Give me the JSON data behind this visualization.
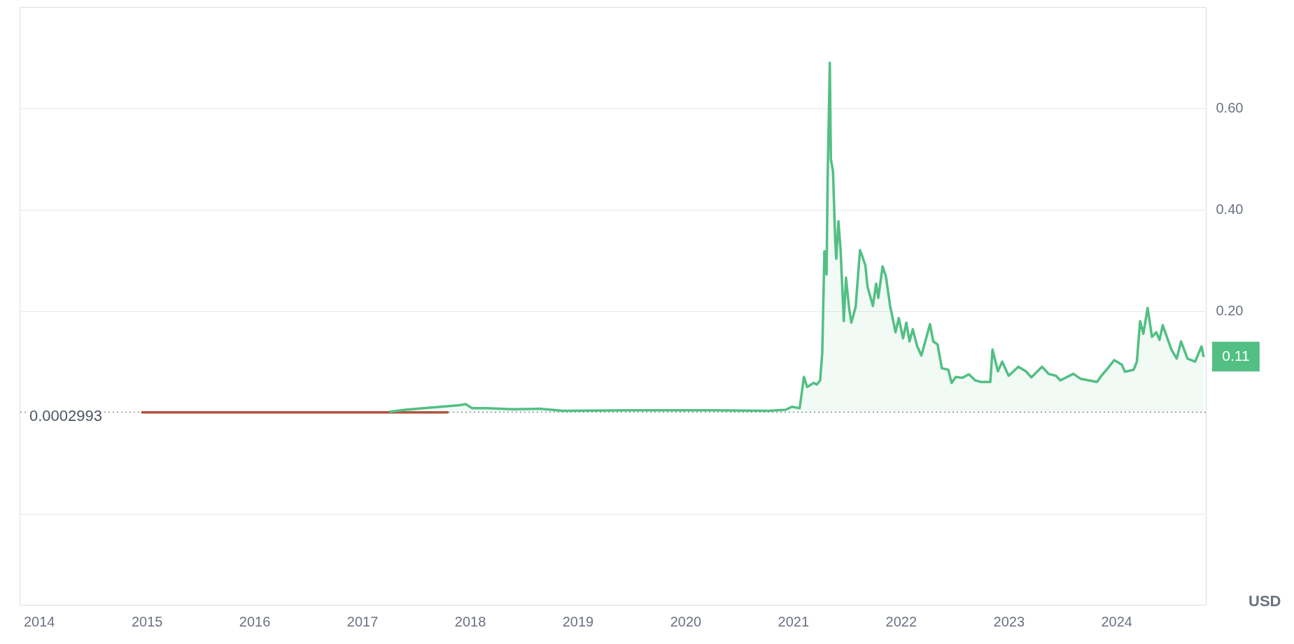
{
  "chart_data": {
    "type": "area",
    "xlim": [
      2013.82,
      2024.83
    ],
    "ylim": [
      -0.38,
      0.8
    ],
    "xticks": [
      {
        "value": 2014,
        "label": "2014"
      },
      {
        "value": 2015,
        "label": "2015"
      },
      {
        "value": 2016,
        "label": "2016"
      },
      {
        "value": 2017,
        "label": "2017"
      },
      {
        "value": 2018,
        "label": "2018"
      },
      {
        "value": 2019,
        "label": "2019"
      },
      {
        "value": 2020,
        "label": "2020"
      },
      {
        "value": 2021,
        "label": "2021"
      },
      {
        "value": 2022,
        "label": "2022"
      },
      {
        "value": 2023,
        "label": "2023"
      },
      {
        "value": 2024,
        "label": "2024"
      }
    ],
    "yticks": [
      {
        "value": -0.2,
        "label": null
      },
      {
        "value": 0.2,
        "label": "0.20"
      },
      {
        "value": 0.4,
        "label": "0.40"
      },
      {
        "value": 0.6,
        "label": "0.60"
      }
    ],
    "grid": "y",
    "marker": "none",
    "line_style": "solid",
    "series": [
      {
        "type": "line",
        "color": "#b5503f",
        "x": [
          2014.95,
          2017.8
        ],
        "values": [
          0,
          0
        ]
      },
      {
        "color": "#52bf83",
        "x": [
          2017.25,
          2017.4,
          2017.9,
          2017.96,
          2018.02,
          2018.15,
          2018.4,
          2018.65,
          2018.86,
          2019.5,
          2020.2,
          2020.77,
          2020.93,
          2020.99,
          2021.06,
          2021.1,
          2021.13,
          2021.19,
          2021.22,
          2021.25,
          2021.27,
          2021.29,
          2021.31,
          2021.32,
          2021.34,
          2021.35,
          2021.37,
          2021.39,
          2021.4,
          2021.42,
          2021.44,
          2021.47,
          2021.49,
          2021.52,
          2021.54,
          2021.58,
          2021.62,
          2021.64,
          2021.67,
          2021.69,
          2021.74,
          2021.77,
          2021.79,
          2021.83,
          2021.86,
          2021.9,
          2021.95,
          2021.98,
          2022.02,
          2022.05,
          2022.08,
          2022.11,
          2022.15,
          2022.19,
          2022.27,
          2022.3,
          2022.34,
          2022.38,
          2022.44,
          2022.47,
          2022.51,
          2022.57,
          2022.63,
          2022.69,
          2022.74,
          2022.83,
          2022.85,
          2022.9,
          2022.94,
          2023.0,
          2023.09,
          2023.16,
          2023.21,
          2023.31,
          2023.37,
          2023.44,
          2023.48,
          2023.6,
          2023.67,
          2023.82,
          2023.86,
          2023.92,
          2023.98,
          2024.05,
          2024.08,
          2024.16,
          2024.19,
          2024.22,
          2024.25,
          2024.29,
          2024.33,
          2024.37,
          2024.4,
          2024.43,
          2024.51,
          2024.56,
          2024.6,
          2024.66,
          2024.73,
          2024.79,
          2024.81
        ],
        "values": [
          0.001,
          0.005,
          0.014,
          0.016,
          0.008,
          0.008,
          0.006,
          0.007,
          0.003,
          0.004,
          0.004,
          0.003,
          0.005,
          0.011,
          0.008,
          0.07,
          0.05,
          0.058,
          0.055,
          0.063,
          0.118,
          0.318,
          0.272,
          0.463,
          0.69,
          0.5,
          0.475,
          0.34,
          0.303,
          0.377,
          0.321,
          0.18,
          0.266,
          0.204,
          0.177,
          0.208,
          0.32,
          0.309,
          0.29,
          0.248,
          0.21,
          0.254,
          0.226,
          0.288,
          0.269,
          0.21,
          0.158,
          0.186,
          0.146,
          0.177,
          0.14,
          0.164,
          0.131,
          0.112,
          0.174,
          0.14,
          0.134,
          0.087,
          0.084,
          0.058,
          0.07,
          0.068,
          0.075,
          0.063,
          0.06,
          0.06,
          0.124,
          0.081,
          0.1,
          0.072,
          0.09,
          0.081,
          0.069,
          0.09,
          0.076,
          0.072,
          0.063,
          0.076,
          0.066,
          0.06,
          0.072,
          0.087,
          0.103,
          0.094,
          0.08,
          0.084,
          0.1,
          0.18,
          0.155,
          0.206,
          0.149,
          0.158,
          0.143,
          0.172,
          0.124,
          0.106,
          0.14,
          0.106,
          0.1,
          0.13,
          0.109
        ]
      }
    ],
    "ref_lines": [
      {
        "axis": "y",
        "value": 0.0002993,
        "label": "0.0002993",
        "color": "#8a8f98",
        "line_style": "dotted"
      }
    ],
    "annotations": [
      {
        "text": "0.11",
        "x": 2024.81,
        "y": 0.11
      },
      "USD"
    ]
  }
}
